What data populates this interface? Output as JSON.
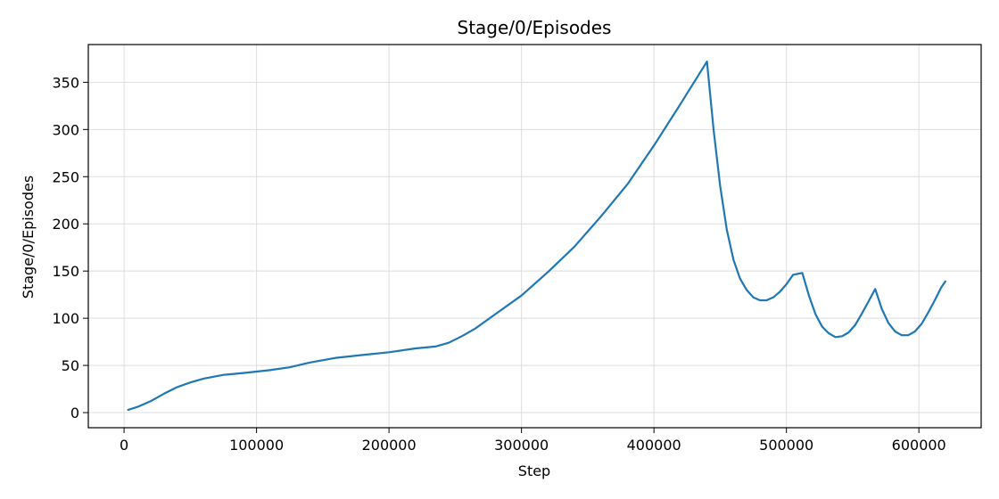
{
  "chart_data": {
    "type": "line",
    "title": "Stage/0/Episodes",
    "xlabel": "Step",
    "ylabel": "Stage/0/Episodes",
    "xlim": [
      -27000,
      647000
    ],
    "ylim": [
      -16,
      390
    ],
    "xticks": [
      0,
      100000,
      200000,
      300000,
      400000,
      500000,
      600000
    ],
    "xtick_labels": [
      "0",
      "100000",
      "200000",
      "300000",
      "400000",
      "500000",
      "600000"
    ],
    "yticks": [
      0,
      50,
      100,
      150,
      200,
      250,
      300,
      350
    ],
    "ytick_labels": [
      "0",
      "50",
      "100",
      "150",
      "200",
      "250",
      "300",
      "350"
    ],
    "grid": true,
    "series": [
      {
        "color": "#1f77b4",
        "x": [
          3000,
          10000,
          20000,
          30000,
          40000,
          50000,
          60000,
          75000,
          90000,
          110000,
          125000,
          140000,
          160000,
          180000,
          200000,
          220000,
          235000,
          245000,
          255000,
          265000,
          280000,
          300000,
          320000,
          340000,
          360000,
          380000,
          400000,
          420000,
          440000,
          445000,
          450000,
          455000,
          460000,
          465000,
          470000,
          475000,
          480000,
          485000,
          490000,
          495000,
          500000,
          505000,
          512000,
          517000,
          522000,
          527000,
          532000,
          537000,
          542000,
          547000,
          552000,
          557000,
          562000,
          567000,
          572000,
          577000,
          582000,
          587000,
          592000,
          597000,
          602000,
          607000,
          612000,
          617000,
          620000
        ],
        "y": [
          3,
          6,
          12,
          20,
          27,
          32,
          36,
          40,
          42,
          45,
          48,
          53,
          58,
          61,
          64,
          68,
          70,
          74,
          81,
          89,
          104,
          124,
          149,
          176,
          208,
          242,
          283,
          327,
          372,
          300,
          240,
          194,
          162,
          142,
          130,
          122,
          119,
          119,
          122,
          128,
          136,
          146,
          148,
          124,
          104,
          91,
          84,
          80,
          81,
          85,
          93,
          105,
          118,
          131,
          110,
          95,
          86,
          82,
          82,
          86,
          94,
          106,
          119,
          133,
          139
        ]
      }
    ]
  }
}
